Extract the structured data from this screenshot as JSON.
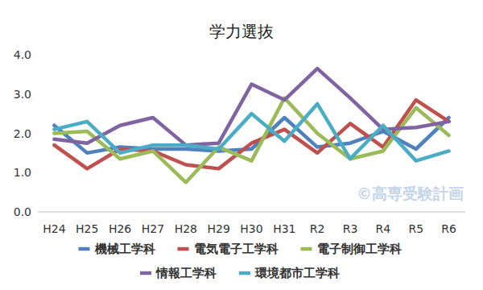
{
  "chart_data": {
    "type": "line",
    "title": "学力選抜",
    "categories": [
      "H24",
      "H25",
      "H26",
      "H27",
      "H28",
      "H29",
      "H30",
      "H31",
      "R2",
      "R3",
      "R4",
      "R5",
      "R6"
    ],
    "series": [
      {
        "name": "機械工学科",
        "color": "#4f81bd",
        "values": [
          2.2,
          1.5,
          1.65,
          1.6,
          1.6,
          1.55,
          1.6,
          2.4,
          1.65,
          1.75,
          2.05,
          1.6,
          2.4
        ]
      },
      {
        "name": "電気電子工学科",
        "color": "#c0504d",
        "values": [
          1.7,
          1.1,
          1.6,
          1.55,
          1.2,
          1.1,
          1.75,
          2.1,
          1.5,
          2.25,
          1.65,
          2.85,
          2.3
        ]
      },
      {
        "name": "電子制御工学科",
        "color": "#9bbb59",
        "values": [
          2.0,
          2.05,
          1.35,
          1.55,
          0.75,
          1.65,
          1.3,
          2.9,
          2.0,
          1.35,
          1.55,
          2.65,
          1.95
        ]
      },
      {
        "name": "情報工学科",
        "color": "#8064a2",
        "values": [
          1.85,
          1.75,
          2.2,
          2.4,
          1.7,
          1.75,
          3.25,
          2.85,
          3.65,
          2.9,
          2.1,
          2.15,
          2.3
        ]
      },
      {
        "name": "環境都市工学科",
        "color": "#4bacc6",
        "values": [
          2.1,
          2.3,
          1.5,
          1.7,
          1.7,
          1.6,
          2.5,
          1.8,
          2.75,
          1.35,
          2.2,
          1.3,
          1.55
        ]
      }
    ],
    "ylim": [
      0,
      4
    ],
    "yticks": [
      {
        "value": 0,
        "label": "0.0"
      },
      {
        "value": 1,
        "label": "1.0"
      },
      {
        "value": 2,
        "label": "2.0"
      },
      {
        "value": 3,
        "label": "3.0"
      },
      {
        "value": 4,
        "label": "4.0"
      }
    ],
    "grid": false,
    "legend": "bottom",
    "annotations": [
      "©高専受験計画"
    ]
  }
}
